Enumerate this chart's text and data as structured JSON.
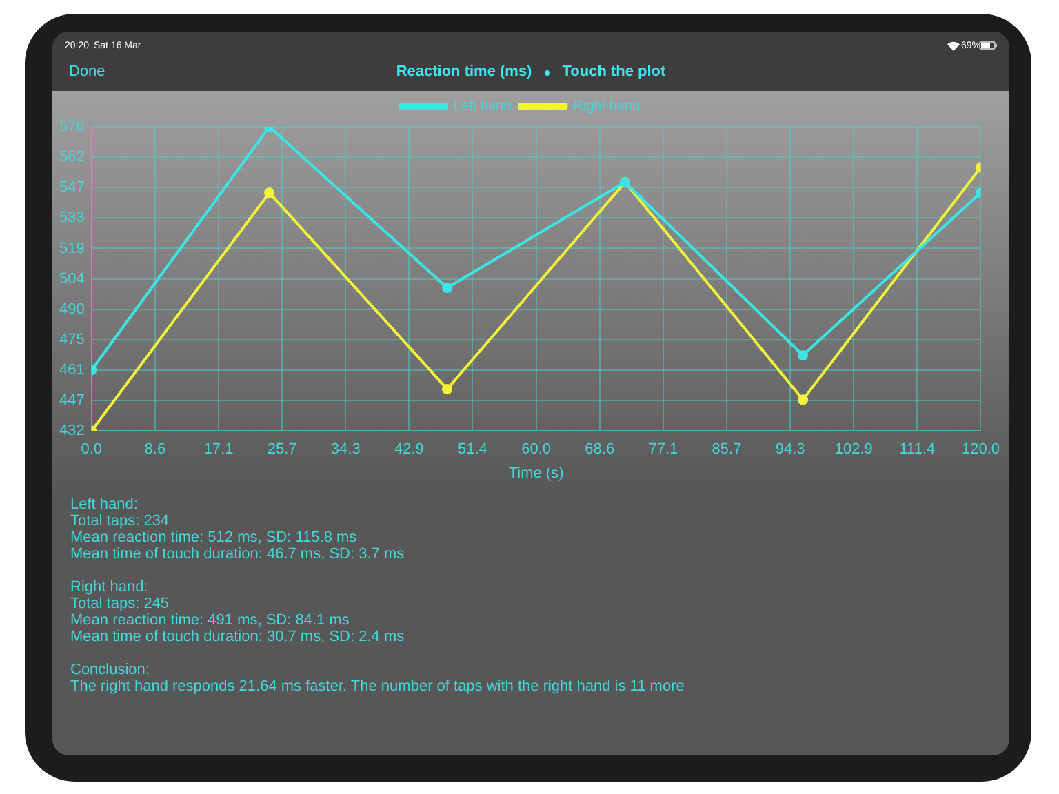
{
  "chart_data": {
    "type": "line",
    "title": "Reaction time (ms)",
    "subtitle": "Touch the plot",
    "xlabel": "Time (s)",
    "x": [
      0,
      24,
      48,
      72,
      96,
      120
    ],
    "series": [
      {
        "name": "Left hand",
        "color": "#3ce4e4",
        "values": [
          461,
          576.2,
          500,
          550,
          468,
          545
        ]
      },
      {
        "name": "Right hand",
        "color": "#f2f23a",
        "values": [
          432.2,
          545,
          452,
          550,
          447,
          557
        ]
      }
    ],
    "xlim": [
      0,
      120
    ],
    "xticks": [
      {
        "value": 0,
        "label": "0.0"
      },
      {
        "value": 8.571,
        "label": "8.6"
      },
      {
        "value": 17.143,
        "label": "17.1"
      },
      {
        "value": 25.714,
        "label": "25.7"
      },
      {
        "value": 34.286,
        "label": "34.3"
      },
      {
        "value": 42.857,
        "label": "42.9"
      },
      {
        "value": 51.429,
        "label": "51.4"
      },
      {
        "value": 60,
        "label": "60.0"
      },
      {
        "value": 68.571,
        "label": "68.6"
      },
      {
        "value": 77.143,
        "label": "77.1"
      },
      {
        "value": 85.714,
        "label": "85.7"
      },
      {
        "value": 94.286,
        "label": "94.3"
      },
      {
        "value": 102.857,
        "label": "102.9"
      },
      {
        "value": 111.429,
        "label": "111.4"
      },
      {
        "value": 120,
        "label": "120.0"
      }
    ],
    "ylim": [
      432.2,
      576.2
    ],
    "yticks": [
      {
        "value": 432.2,
        "label": "432"
      },
      {
        "value": 446.6,
        "label": "447"
      },
      {
        "value": 461,
        "label": "461"
      },
      {
        "value": 475.4,
        "label": "475"
      },
      {
        "value": 489.8,
        "label": "490"
      },
      {
        "value": 504.2,
        "label": "504"
      },
      {
        "value": 518.6,
        "label": "519"
      },
      {
        "value": 533,
        "label": "533"
      },
      {
        "value": 547.4,
        "label": "547"
      },
      {
        "value": 561.8,
        "label": "562"
      },
      {
        "value": 576.2,
        "label": "576"
      }
    ],
    "grid": true,
    "legend": "top",
    "marker": "circle",
    "annotations": [
      "20:20",
      "Sat 16 Mar",
      "69%",
      "Done",
      "Left hand:\nTotal taps: 234\nMean reaction time: 512 ms, SD: 115.8 ms\nMean time of touch duration: 46.7 ms, SD: 3.7 ms",
      "Right hand:\nTotal taps: 245\nMean reaction time: 491 ms, SD: 84.1 ms\nMean time of touch duration: 30.7 ms, SD: 2.4 ms",
      "Conclusion:\nThe right hand responds 21.64 ms faster. The number of taps with the right hand is 11 more"
    ]
  }
}
